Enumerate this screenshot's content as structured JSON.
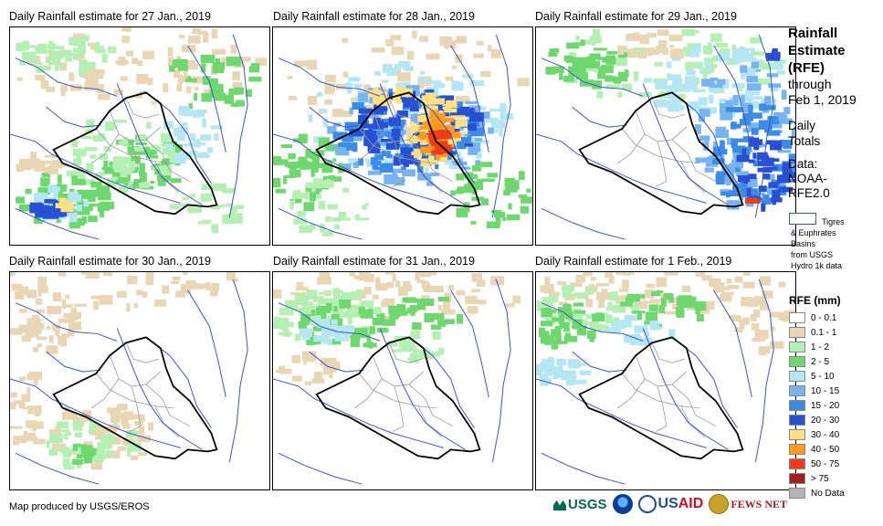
{
  "panels": [
    {
      "title": "Daily Rainfall estimate for 27 Jan., 2019",
      "key": "p27"
    },
    {
      "title": "Daily Rainfall estimate for 28 Jan., 2019",
      "key": "p28"
    },
    {
      "title": "Daily Rainfall estimate for 29 Jan., 2019",
      "key": "p29"
    },
    {
      "title": "Daily Rainfall estimate for 30 Jan., 2019",
      "key": "p30"
    },
    {
      "title": "Daily Rainfall estimate for 31 Jan., 2019",
      "key": "p31"
    },
    {
      "title": "Daily Rainfall estimate for 1 Feb., 2019",
      "key": "p01"
    }
  ],
  "sidebar": {
    "title_line1": "Rainfall",
    "title_line2": "Estimate",
    "title_line3": "(RFE)",
    "through": "through",
    "through_date": "Feb 1, 2019",
    "daily": "Daily",
    "totals": "Totals",
    "data_label": "Data:",
    "data_source1": "NOAA-",
    "data_source2": "RFE2.0",
    "basin_line1": "Tigres",
    "basin_line2": "& Euphrates",
    "basin_line3": "Basins",
    "basin_line4": "from USGS",
    "basin_line5": "Hydro 1k data"
  },
  "legend": {
    "title": "RFE (mm)",
    "items": [
      {
        "label": "0 - 0.1",
        "color": "#ffffff"
      },
      {
        "label": "0.1 - 1",
        "color": "#e8d6b4"
      },
      {
        "label": "1 - 2",
        "color": "#b4f0b4"
      },
      {
        "label": "2 - 5",
        "color": "#6ed86e"
      },
      {
        "label": "5 - 10",
        "color": "#b4e6f4"
      },
      {
        "label": "10 - 15",
        "color": "#78b4f0"
      },
      {
        "label": "15 - 20",
        "color": "#3c8ce6"
      },
      {
        "label": "20 - 30",
        "color": "#2850d2"
      },
      {
        "label": "30 - 40",
        "color": "#ffe082"
      },
      {
        "label": "40 - 50",
        "color": "#ff9a1e"
      },
      {
        "label": "50 - 75",
        "color": "#f03c14"
      },
      {
        "label": "> 75",
        "color": "#a01e1e"
      },
      {
        "label": "No Data",
        "color": "#b4b4b4"
      }
    ]
  },
  "footer": {
    "credit": "Map produced by USGS/EROS",
    "logo_usgs": "USGS",
    "logo_usaid_a": "US",
    "logo_usaid_b": "AID",
    "logo_fews": "FEWS NET"
  }
}
